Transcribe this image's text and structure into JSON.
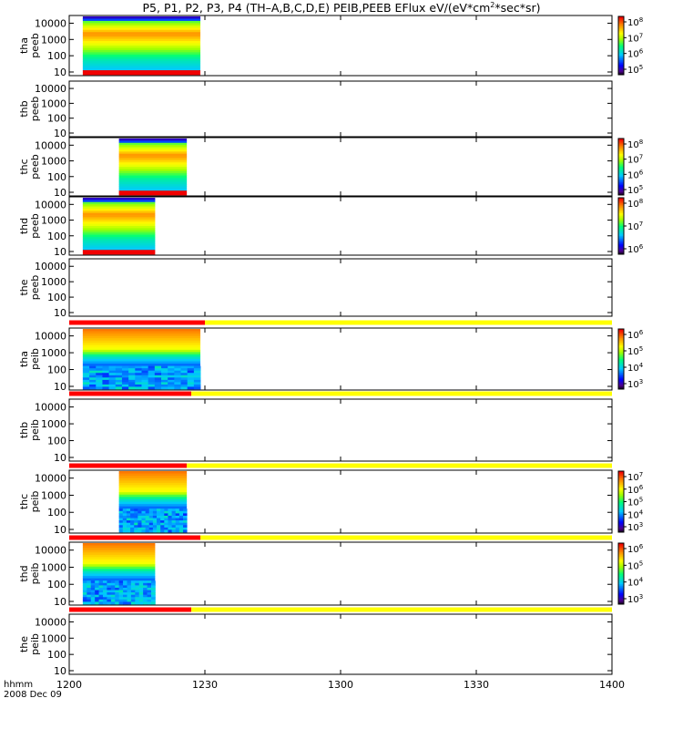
{
  "chart_data": {
    "type": "heatmap",
    "title": "P5, P1, P2, P3, P4 (TH–A,B,C,D,E) PEIB,PEEB EFlux eV/(eV*cm",
    "title_sup": "2",
    "title_end": "*sec*sr)",
    "x_units_label": "hhmm",
    "date_label": "2008 Dec 09",
    "x_ticks": [
      "1200",
      "1230",
      "1300",
      "1330",
      "1400"
    ],
    "y_scale": "log",
    "y_ticks": [
      "10",
      "100",
      "1000",
      "10000"
    ],
    "y_ticks_probe_e": [
      "10",
      "100",
      "1000",
      "10000"
    ],
    "grid": false,
    "panels": [
      {
        "probe": "tha",
        "product": "peeb",
        "t_start": "12:03",
        "t_end": "12:29",
        "colorbar": {
          "ticks": [
            "10^5",
            "10^6",
            "10^7",
            "10^8"
          ],
          "labels": [
            "10",
            "10",
            "10",
            "10"
          ],
          "exps": [
            "5",
            "6",
            "7",
            "8"
          ]
        }
      },
      {
        "probe": "thb",
        "product": "peeb",
        "t_start": null,
        "t_end": null
      },
      {
        "probe": "thc",
        "product": "peeb",
        "t_start": "12:11",
        "t_end": "12:26",
        "colorbar": {
          "labels": [
            "10",
            "10",
            "10",
            "10"
          ],
          "exps": [
            "5",
            "6",
            "7",
            "8"
          ]
        }
      },
      {
        "probe": "thd",
        "product": "peeb",
        "t_start": "12:03",
        "t_end": "12:19",
        "colorbar": {
          "labels": [
            "10",
            "10",
            "10"
          ],
          "exps": [
            "6",
            "7",
            "8"
          ]
        }
      },
      {
        "probe": "the",
        "product": "peeb",
        "t_start": null,
        "t_end": null
      },
      {
        "probe": "tha",
        "product": "peib",
        "t_start": "12:03",
        "t_end": "12:29",
        "colorbar": {
          "labels": [
            "10",
            "10",
            "10",
            "10"
          ],
          "exps": [
            "3",
            "4",
            "5",
            "6"
          ]
        }
      },
      {
        "probe": "thb",
        "product": "peib",
        "t_start": null,
        "t_end": null
      },
      {
        "probe": "thc",
        "product": "peib",
        "t_start": "12:11",
        "t_end": "12:26",
        "colorbar": {
          "labels": [
            "10",
            "10",
            "10",
            "10",
            "10"
          ],
          "exps": [
            "3",
            "4",
            "5",
            "6",
            "7"
          ]
        }
      },
      {
        "probe": "thd",
        "product": "peib",
        "t_start": "12:03",
        "t_end": "12:19",
        "colorbar": {
          "labels": [
            "10",
            "10",
            "10",
            "10"
          ],
          "exps": [
            "3",
            "4",
            "5",
            "6"
          ]
        }
      },
      {
        "probe": "the",
        "product": "peib",
        "t_start": null,
        "t_end": null
      }
    ],
    "mode_bars": [
      {
        "red_end": "12:30",
        "after": "yellow"
      },
      {
        "red_end": "12:27",
        "after": "yellow"
      },
      {
        "red_end": "12:26",
        "after": "yellow"
      },
      {
        "red_end": "12:29",
        "after": "yellow"
      },
      {
        "red_end": "12:27",
        "after": "yellow"
      }
    ],
    "colors": {
      "red": "#ff0000",
      "yellow": "#ffff00",
      "axis": "#000000"
    }
  }
}
